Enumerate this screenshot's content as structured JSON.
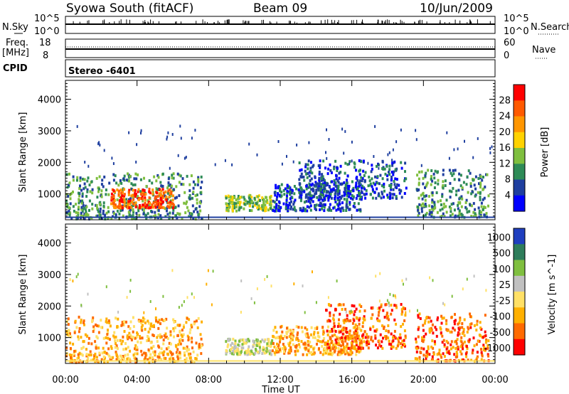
{
  "header": {
    "station": "Syowa South (fitACF)",
    "beam": "Beam 09",
    "date": "10/Jun/2009"
  },
  "status_panels": {
    "nsky_label": "N.Sky",
    "nsky_ticks": [
      "10^5",
      "10^0"
    ],
    "nsearch_label": "N.Search",
    "nsearch_ticks": [
      "10^5",
      "10^0"
    ],
    "freq_label_line1": "Freq.",
    "freq_label_line2": "[MHz]",
    "freq_ticks": [
      "18",
      "8"
    ],
    "nave_label": "Nave",
    "nave_ticks": [
      "60",
      "0"
    ],
    "cpid_label": "CPID",
    "cpid_value": "Stereo -6401"
  },
  "chart_data": [
    {
      "type": "heatmap",
      "name": "power",
      "ylabel": "Slant Range [km]",
      "xlabel": "",
      "ylim": [
        180,
        4600
      ],
      "xlim": [
        0,
        24
      ],
      "yticks": [
        "1000",
        "2000",
        "3000",
        "4000"
      ],
      "xticks": [
        "00:00",
        "04:00",
        "08:00",
        "12:00",
        "16:00",
        "20:00",
        "00:00"
      ],
      "colorbar": {
        "label": "Power [dB]",
        "ticks": [
          "28",
          "24",
          "20",
          "16",
          "12",
          "8",
          "4"
        ],
        "colors": [
          "#ff0000",
          "#ff5a00",
          "#ff9600",
          "#ffd200",
          "#7fbf3f",
          "#2e8b57",
          "#1f3f9f",
          "#0000ff"
        ]
      },
      "scatter_regions": [
        {
          "t0": 0.0,
          "t1": 7.6,
          "r0": 250,
          "r1": 1700,
          "level": 5
        },
        {
          "t0": 2.5,
          "t1": 6.0,
          "r0": 600,
          "r1": 1200,
          "level": 1
        },
        {
          "t0": 8.9,
          "t1": 11.5,
          "r0": 500,
          "r1": 1000,
          "level": 4
        },
        {
          "t0": 11.5,
          "t1": 16.5,
          "r0": 500,
          "r1": 1400,
          "level": 6
        },
        {
          "t0": 13.0,
          "t1": 19.0,
          "r0": 900,
          "r1": 2100,
          "level": 6
        },
        {
          "t0": 19.5,
          "t1": 23.6,
          "r0": 300,
          "r1": 1800,
          "level": 5
        }
      ]
    },
    {
      "type": "heatmap",
      "name": "velocity",
      "ylabel": "Slant Range [km]",
      "xlabel": "Time UT",
      "ylim": [
        180,
        4600
      ],
      "xlim": [
        0,
        24
      ],
      "yticks": [
        "1000",
        "2000",
        "3000",
        "4000"
      ],
      "xticks": [
        "00:00",
        "04:00",
        "08:00",
        "12:00",
        "16:00",
        "20:00",
        "00:00"
      ],
      "colorbar": {
        "label": "Velocity [m s^-1]",
        "ticks": [
          "1000",
          "500",
          "100",
          "25",
          "-25",
          "-100",
          "-500",
          "-1000"
        ],
        "colors": [
          "#1f3fbf",
          "#2e7d5b",
          "#7fbf3f",
          "#c0c0c0",
          "#ffe066",
          "#ffb000",
          "#ff6a00",
          "#ff0000"
        ]
      },
      "scatter_regions": [
        {
          "t0": 0.0,
          "t1": 7.6,
          "r0": 250,
          "r1": 1700,
          "level": 5
        },
        {
          "t0": 8.9,
          "t1": 11.5,
          "r0": 500,
          "r1": 1000,
          "level": 3
        },
        {
          "t0": 11.5,
          "t1": 16.5,
          "r0": 500,
          "r1": 1400,
          "level": 5
        },
        {
          "t0": 14.5,
          "t1": 19.0,
          "r0": 700,
          "r1": 2100,
          "level": 6
        },
        {
          "t0": 19.5,
          "t1": 23.6,
          "r0": 300,
          "r1": 1800,
          "level": 6
        }
      ]
    }
  ]
}
